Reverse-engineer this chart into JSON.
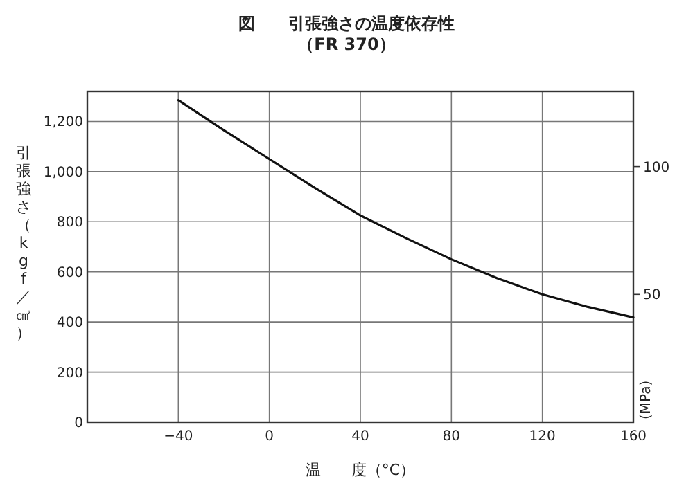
{
  "chart_data": {
    "type": "line",
    "title": "図　　引張強さの温度依存性",
    "subtitle": "（FR 370）",
    "xlabel": "温　　度（°C）",
    "ylabel": "引張強さ（kgf／㎠）",
    "y2label": "(MPa)",
    "x": [
      -40,
      -20,
      0,
      20,
      40,
      60,
      80,
      100,
      120,
      140,
      160
    ],
    "series": [
      {
        "color": "#111111",
        "values": [
          1285,
          1165,
          1050,
          935,
          825,
          735,
          650,
          575,
          510,
          460,
          418
        ]
      }
    ],
    "xlim": [
      -80,
      160
    ],
    "xticks": [
      -40,
      0,
      40,
      80,
      120,
      160
    ],
    "ylim": [
      0,
      1320
    ],
    "yticks": [
      {
        "value": 0,
        "label": "0"
      },
      {
        "value": 200,
        "label": "200"
      },
      {
        "value": 400,
        "label": "400"
      },
      {
        "value": 600,
        "label": "600"
      },
      {
        "value": 800,
        "label": "800"
      },
      {
        "value": 1000,
        "label": "1,000"
      },
      {
        "value": 1200,
        "label": "1,200"
      }
    ],
    "y2lim": [
      0,
      129.4
    ],
    "y2ticks": [
      50,
      100
    ],
    "grid": true,
    "marker": "none",
    "line_style": "solid"
  }
}
